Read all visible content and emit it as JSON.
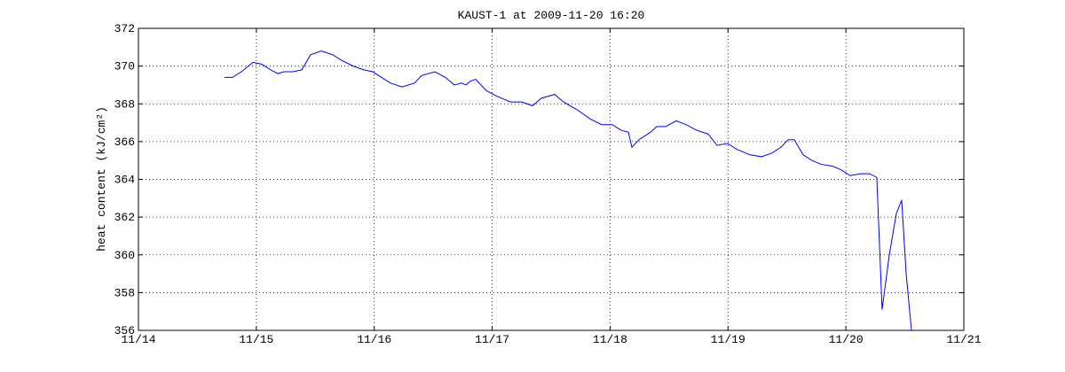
{
  "chart_data": {
    "type": "line",
    "title": "KAUST-1 at 2009-11-20 16:20",
    "y_label": "heat content (kJ/cm²)",
    "xlim": [
      14,
      21
    ],
    "xticks": [
      {
        "value": 14,
        "label": "11/14"
      },
      {
        "value": 15,
        "label": "11/15"
      },
      {
        "value": 16,
        "label": "11/16"
      },
      {
        "value": 17,
        "label": "11/17"
      },
      {
        "value": 18,
        "label": "11/18"
      },
      {
        "value": 19,
        "label": "11/19"
      },
      {
        "value": 20,
        "label": "11/20"
      },
      {
        "value": 21,
        "label": "11/21"
      }
    ],
    "ylim": [
      356,
      372
    ],
    "yticks": [
      356,
      358,
      360,
      362,
      364,
      366,
      368,
      370,
      372
    ],
    "grid": true,
    "x": [
      14.73,
      14.798,
      14.873,
      14.971,
      15.046,
      15.122,
      15.182,
      15.234,
      15.31,
      15.385,
      15.46,
      15.55,
      15.648,
      15.724,
      15.821,
      15.912,
      15.987,
      16.062,
      16.138,
      16.235,
      16.341,
      16.401,
      16.514,
      16.604,
      16.679,
      16.74,
      16.777,
      16.815,
      16.86,
      16.95,
      17.041,
      17.154,
      17.252,
      17.342,
      17.417,
      17.53,
      17.605,
      17.718,
      17.831,
      17.929,
      18.019,
      18.094,
      18.155,
      18.185,
      18.245,
      18.343,
      18.396,
      18.471,
      18.561,
      18.644,
      18.734,
      18.832,
      18.907,
      18.997,
      19.073,
      19.186,
      19.284,
      19.374,
      19.449,
      19.51,
      19.562,
      19.637,
      19.713,
      19.788,
      19.886,
      19.961,
      20.036,
      20.127,
      20.202,
      20.262,
      20.307,
      20.368,
      20.428,
      20.473,
      20.511,
      20.556
    ],
    "series": [
      {
        "color": "#0000ff",
        "values": [
          369.4,
          369.4,
          369.7,
          370.2,
          370.1,
          369.8,
          369.6,
          369.7,
          369.7,
          369.8,
          370.6,
          370.8,
          370.6,
          370.3,
          370.0,
          369.8,
          369.7,
          369.4,
          369.1,
          368.9,
          369.1,
          369.5,
          369.7,
          369.4,
          369.0,
          369.1,
          369.0,
          369.2,
          369.3,
          368.7,
          368.4,
          368.1,
          368.1,
          367.9,
          368.3,
          368.5,
          368.1,
          367.7,
          367.2,
          366.9,
          366.9,
          366.6,
          366.5,
          365.7,
          366.1,
          366.5,
          366.8,
          366.8,
          367.1,
          366.9,
          366.6,
          366.4,
          365.8,
          365.9,
          365.6,
          365.3,
          365.2,
          365.4,
          365.7,
          366.1,
          366.1,
          365.3,
          365.0,
          364.8,
          364.7,
          364.5,
          364.2,
          364.3,
          364.3,
          364.1,
          357.1,
          360.0,
          362.2,
          362.9,
          359.0,
          356.0
        ]
      }
    ]
  }
}
